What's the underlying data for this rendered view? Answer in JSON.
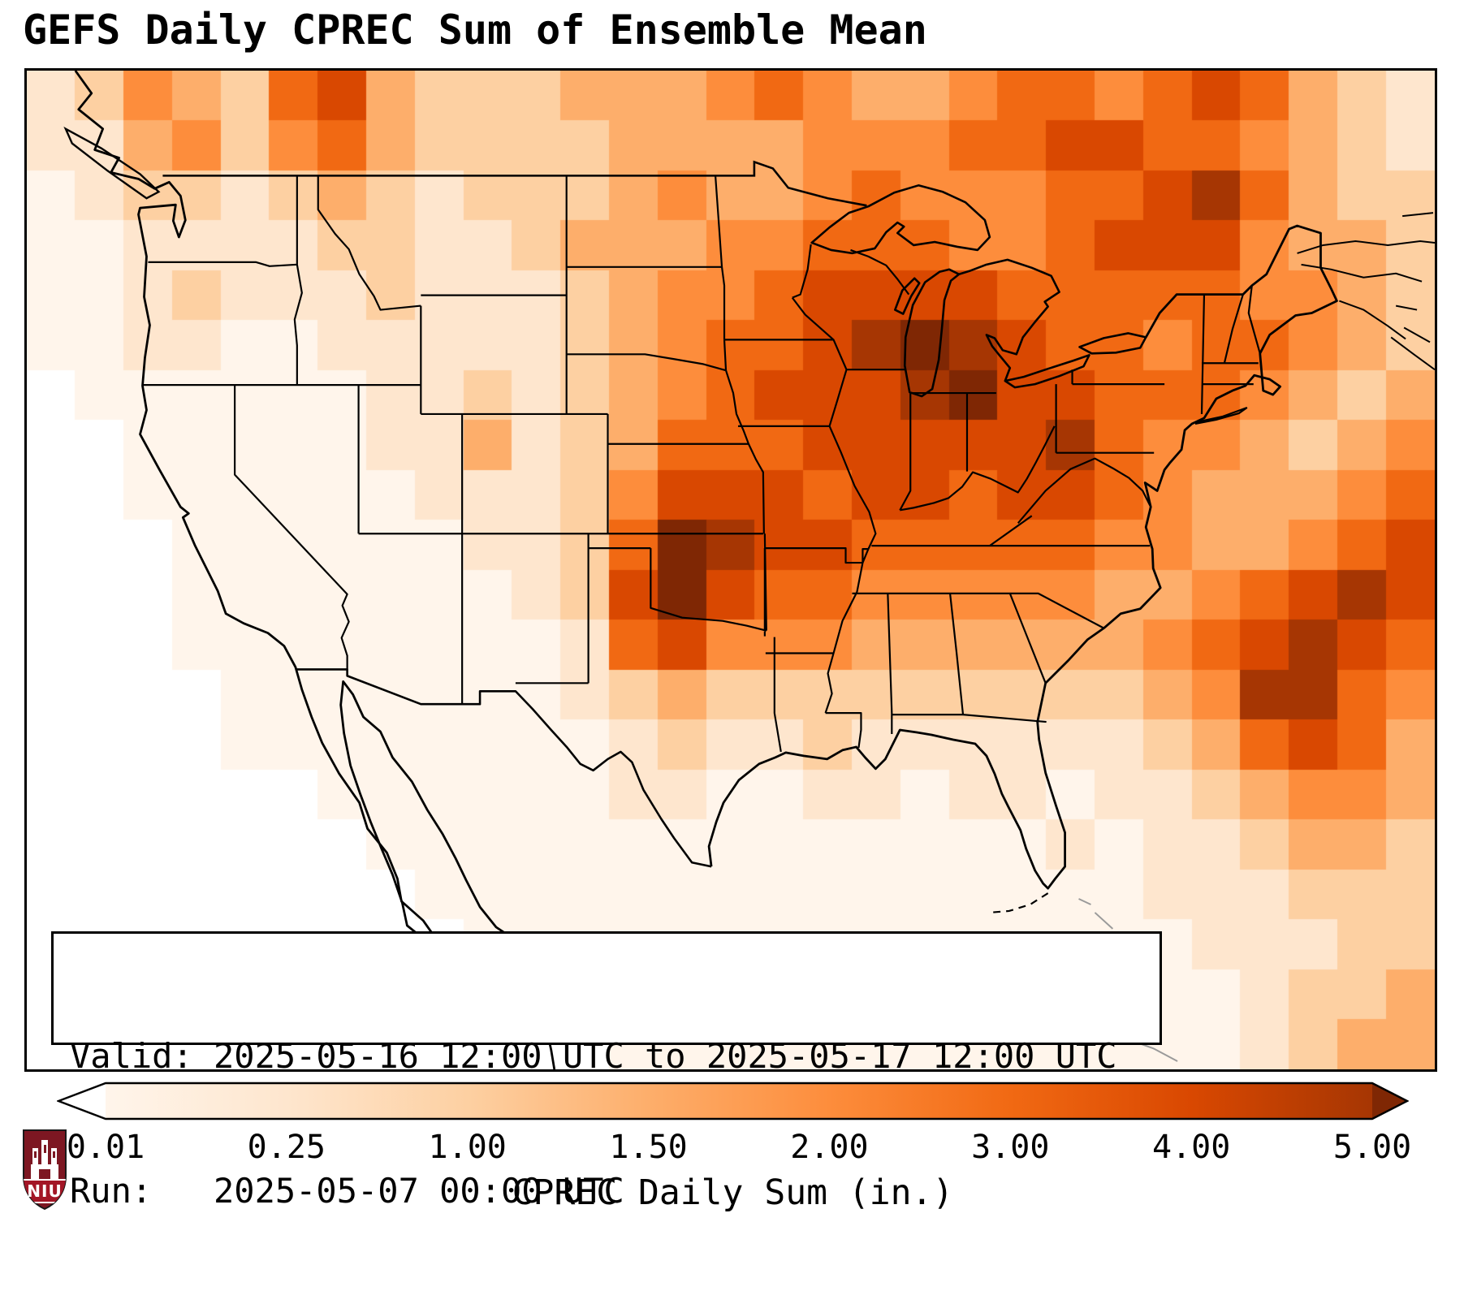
{
  "title": "GEFS Daily CPREC Sum of Ensemble Mean",
  "info_box": {
    "line1": "Valid: 2025-05-16 12:00 UTC to 2025-05-17 12:00 UTC",
    "line2": "Run:   2025-05-07 00:00 UTC"
  },
  "colorbar": {
    "label": "CPREC Daily Sum (in.)",
    "ticks": [
      "0.01",
      "0.25",
      "1.00",
      "1.50",
      "2.00",
      "3.00",
      "4.00",
      "5.00"
    ],
    "under_color": "#ffffff",
    "over_color": "#7f2704"
  },
  "logo": {
    "text": "NIU",
    "shield_color": "#7d1722",
    "band_color": "#a31626"
  },
  "chart_data": {
    "type": "heatmap",
    "title": "GEFS Daily CPREC Sum of Ensemble Mean",
    "units": "in.",
    "colorbar_label": "CPREC Daily Sum (in.)",
    "colorbar_ticks": [
      0.01,
      0.25,
      1.0,
      1.5,
      2.0,
      3.0,
      4.0,
      5.0
    ],
    "valid": "2025-05-16 12:00 UTC to 2025-05-17 12:00 UTC",
    "run": "2025-05-07 00:00 UTC",
    "region": "CONUS and surroundings (approx lon -130 to -62, lat 52.5 to 19)",
    "legend_position": "bottom",
    "grid_note": "Coarse approximation of ensemble-mean daily precip field. 29 cols x 20 rows, row 0 = north. Each digit 0-9 indexes palette / bin_values_in.",
    "bin_values_in": [
      "<0.01",
      "0.01-0.25",
      "0.25-0.75",
      "0.75-1.25",
      "1.25-1.75",
      "1.75-2.5",
      "2.5-3.5",
      "3.5-4.5",
      "4.5-5.0",
      ">5.0"
    ],
    "palette": [
      "#ffffff",
      "#fff5eb",
      "#fee6ce",
      "#fdd0a2",
      "#fdae6b",
      "#fd8d3c",
      "#f16913",
      "#d94801",
      "#a63603",
      "#7f2704"
    ],
    "grid_rows": [
      "23543674333444565445665676432",
      "22453564333344445556677665432",
      "12332343233345445655566786433",
      "11222233223444556665567775443",
      "11232223222345567777666665543",
      "11221122222345667898766566543",
      "01111112232345677789776665434",
      "00111112242346667777786554345",
      "00111111222357776776776544456",
      "00011111122369877666665544567",
      "00011111112379766555554456787",
      "00011111111267555444444567876",
      "00001111111234333333333458865",
      "00001111111123223222222346764",
      "00000011111122112212212234554",
      "00000001111111111111121223443",
      "00000000111111111111111222333",
      "00000000011111111111111122233",
      "00000000000111111111111112334",
      "00000000000011111111111112344"
    ]
  }
}
